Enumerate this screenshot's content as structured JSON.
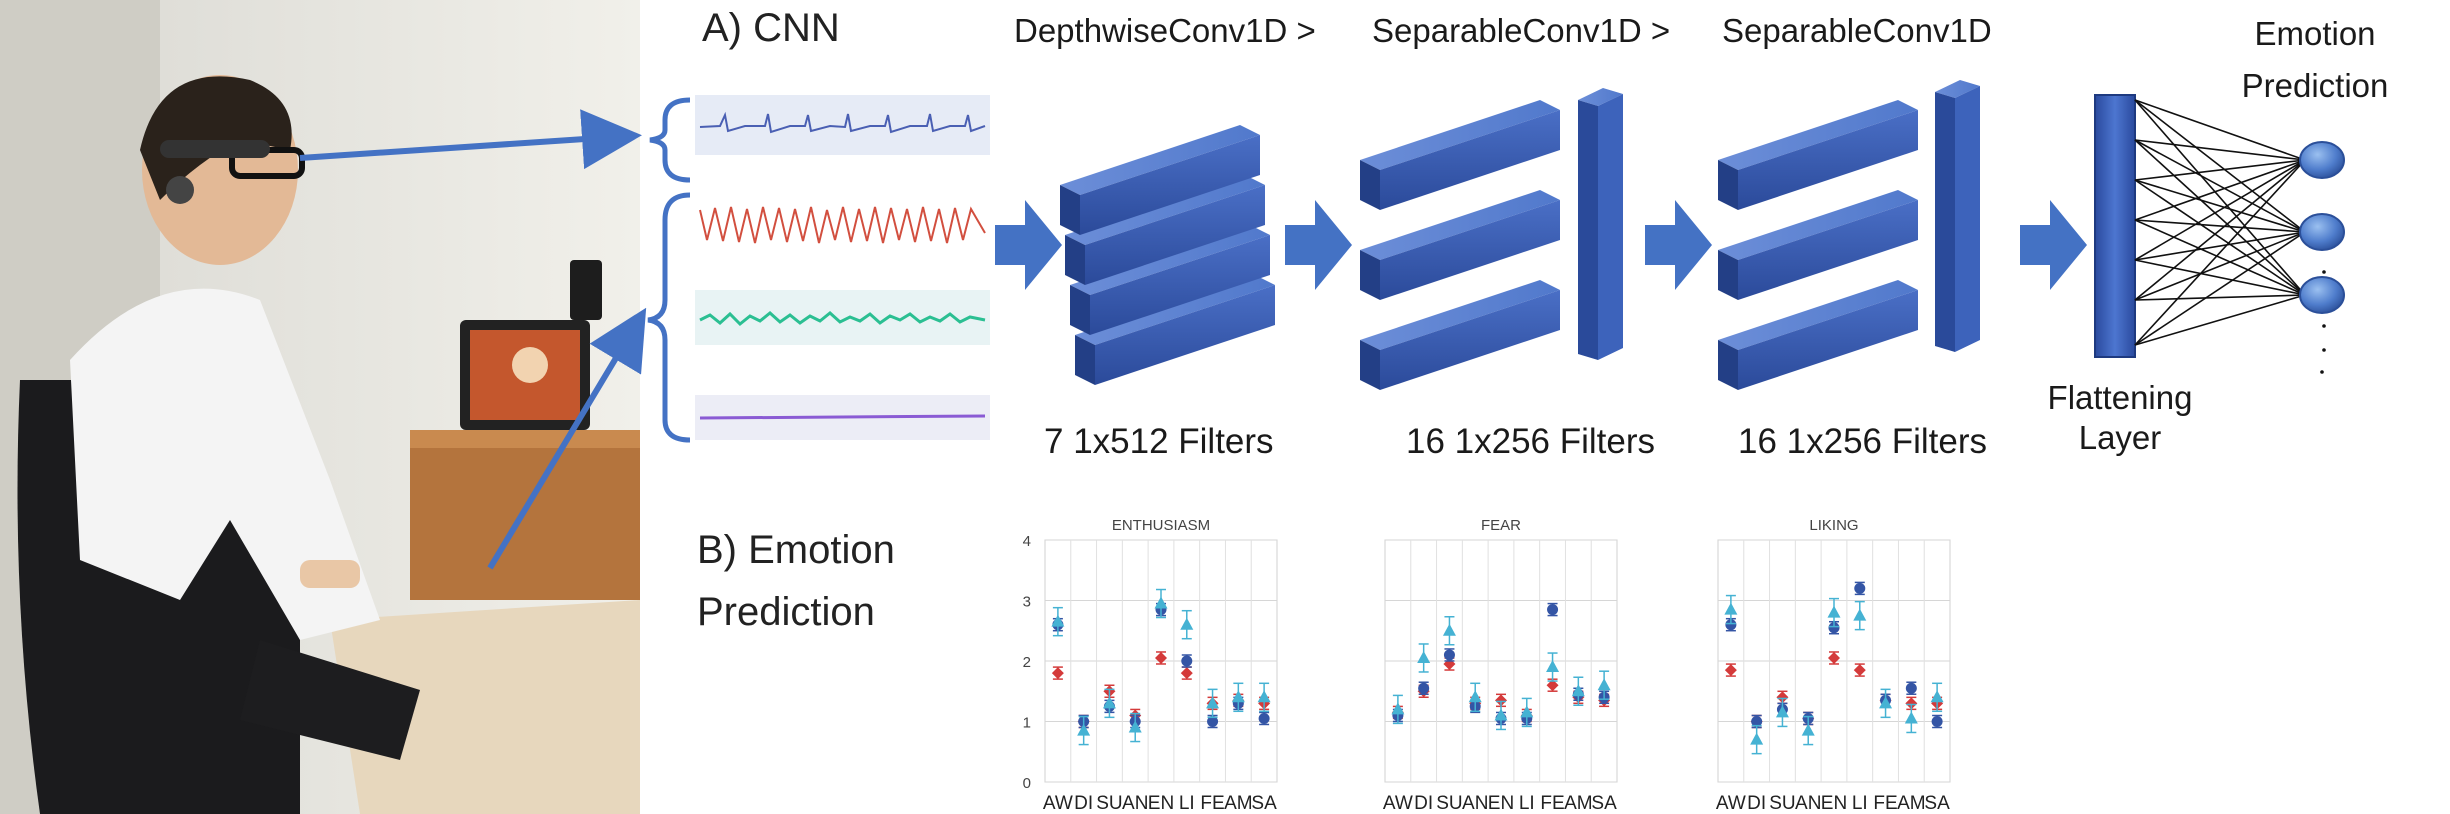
{
  "section_a_title": "A) CNN",
  "section_b_title_line1": "B) Emotion",
  "section_b_title_line2": "Prediction",
  "layers": [
    {
      "name": "DepthwiseConv1D >",
      "filters": "7 1x512 Filters"
    },
    {
      "name": "SeparableConv1D >",
      "filters": "16 1x256 Filters"
    },
    {
      "name": "SeparableConv1D",
      "filters": "16 1x256 Filters"
    }
  ],
  "flattening_line1": "Flattening",
  "flattening_line2": "Layer",
  "emotion_line1": "Emotion",
  "emotion_line2": "Prediction",
  "colors": {
    "block": "#3355a8",
    "block_dark": "#1f3a80",
    "arrow": "#3f6fc9",
    "series_red": "#d43a3a",
    "series_navy": "#3455a5",
    "series_cyan": "#45b2d3"
  },
  "chart_data": [
    {
      "type": "scatter",
      "title": "ENTHUSIASM",
      "categories": [
        "AW",
        "DI",
        "SU",
        "AN",
        "EN",
        "LI",
        "FE",
        "AM",
        "SA"
      ],
      "ylim": [
        0,
        4
      ],
      "yticks": [
        0,
        1,
        2,
        3,
        4
      ],
      "grid": true,
      "series": [
        {
          "values": [
            1.8,
            1.0,
            1.5,
            1.1,
            2.05,
            1.8,
            1.3,
            1.35,
            1.3
          ]
        },
        {
          "values": [
            2.6,
            1.0,
            1.25,
            1.0,
            2.85,
            2.0,
            1.0,
            1.3,
            1.05
          ]
        },
        {
          "values": [
            2.65,
            0.85,
            1.3,
            0.9,
            2.95,
            2.6,
            1.3,
            1.4,
            1.4
          ]
        }
      ]
    },
    {
      "type": "scatter",
      "title": "FEAR",
      "categories": [
        "AW",
        "DI",
        "SU",
        "AN",
        "EN",
        "LI",
        "FE",
        "AM",
        "SA"
      ],
      "ylim": [
        0,
        4
      ],
      "yticks": [
        0,
        1,
        2,
        3,
        4
      ],
      "grid": true,
      "series": [
        {
          "values": [
            1.15,
            1.5,
            1.95,
            1.3,
            1.35,
            1.1,
            1.6,
            1.4,
            1.35
          ]
        },
        {
          "values": [
            1.1,
            1.55,
            2.1,
            1.25,
            1.05,
            1.05,
            2.85,
            1.45,
            1.4
          ]
        },
        {
          "values": [
            1.2,
            2.05,
            2.5,
            1.4,
            1.1,
            1.15,
            1.9,
            1.5,
            1.6
          ]
        }
      ]
    },
    {
      "type": "scatter",
      "title": "LIKING",
      "categories": [
        "AW",
        "DI",
        "SU",
        "AN",
        "EN",
        "LI",
        "FE",
        "AM",
        "SA"
      ],
      "ylim": [
        0,
        4
      ],
      "yticks": [
        0,
        1,
        2,
        3,
        4
      ],
      "grid": true,
      "series": [
        {
          "values": [
            1.85,
            1.0,
            1.4,
            1.05,
            2.05,
            1.85,
            1.35,
            1.3,
            1.3
          ]
        },
        {
          "values": [
            2.6,
            1.0,
            1.2,
            1.05,
            2.55,
            3.2,
            1.35,
            1.55,
            1.0
          ]
        },
        {
          "values": [
            2.85,
            0.7,
            1.15,
            0.85,
            2.8,
            2.75,
            1.3,
            1.05,
            1.4
          ]
        }
      ]
    }
  ]
}
